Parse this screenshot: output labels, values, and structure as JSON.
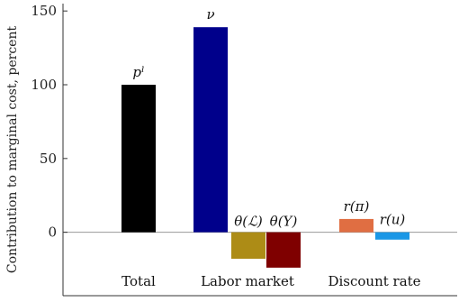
{
  "chart_data": {
    "type": "bar",
    "ylabel": "Contribution to marginal cost, percent",
    "ylim": [
      -43,
      155
    ],
    "yticks": [
      0,
      50,
      100,
      150
    ],
    "bars": [
      {
        "label": "pˡ",
        "value": 100,
        "color": "#000000"
      },
      {
        "label": "ν",
        "value": 139,
        "color": "#00008B"
      },
      {
        "label": "θ(ℒ)",
        "value": -18,
        "color": "#AD8C16"
      },
      {
        "label": "θ(Y)",
        "value": -24,
        "color": "#7F0000"
      },
      {
        "label": "r(π)",
        "value": 9,
        "color": "#E06E42"
      },
      {
        "label": "r(u)",
        "value": -5,
        "color": "#1A97E6"
      }
    ],
    "groups": [
      "Total",
      "Labor market",
      "Discount rate"
    ]
  }
}
